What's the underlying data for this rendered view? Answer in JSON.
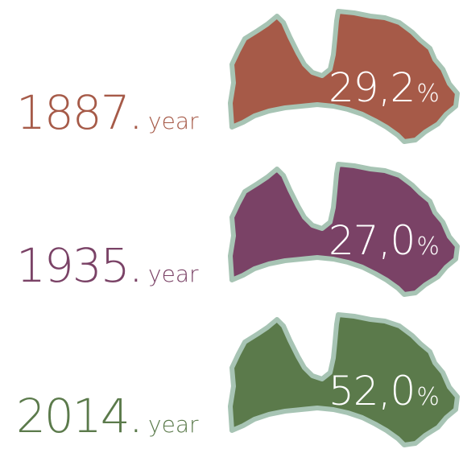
{
  "percent_sign": "%",
  "items": [
    {
      "year": "1887.",
      "unit": "year",
      "value": "29,2",
      "color": "#a65a48"
    },
    {
      "year": "1935.",
      "unit": "year",
      "value": "27,0",
      "color": "#7a4266"
    },
    {
      "year": "2014.",
      "unit": "year",
      "value": "52,0",
      "color": "#5b7a4b"
    }
  ]
}
